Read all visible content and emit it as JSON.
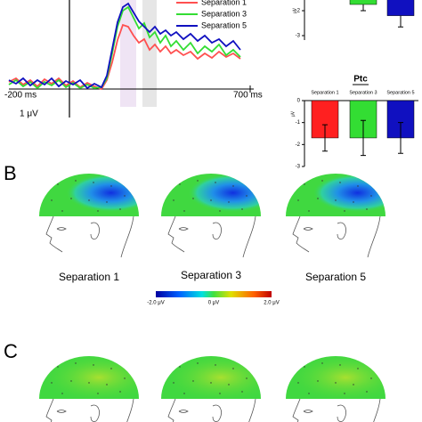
{
  "waveform": {
    "x_start_label": "-200 ms",
    "x_end_label": "700 ms",
    "scale_label": "1 μV",
    "legend": [
      {
        "name": "Separation 1",
        "color": "#ff5050"
      },
      {
        "name": "Separation 3",
        "color": "#33dd33"
      },
      {
        "name": "Separation 5",
        "color": "#1010c0"
      }
    ]
  },
  "bars_top": {
    "type": "bar",
    "ylabel": "μV",
    "ylim": [
      -3,
      0
    ],
    "yticks": [
      -3,
      -2
    ],
    "series": [
      {
        "color": "#33dd33",
        "value": -1.75,
        "error": 0.25
      },
      {
        "color": "#1010c0",
        "value": -2.2,
        "error": 0.45
      }
    ]
  },
  "bars_ptc": {
    "type": "bar",
    "title": "Ptc",
    "ylabel": "μV",
    "ylim": [
      -3,
      0
    ],
    "yticks": [
      0,
      -1,
      -2,
      -3
    ],
    "categories": [
      "Separation 1",
      "Separation 3",
      "Separation 5"
    ],
    "colors": [
      "#ff2020",
      "#33dd33",
      "#1010c0"
    ],
    "values": [
      -1.7,
      -1.7,
      -1.7
    ],
    "errors": [
      0.6,
      0.8,
      0.7
    ]
  },
  "panel_b": {
    "label": "B",
    "heads": [
      "Separation 1",
      "Separation 3",
      "Separation 5"
    ],
    "colorbar": {
      "min_label": "-2.0 μV",
      "mid_label": "0 μV",
      "max_label": "2.0 μV"
    }
  },
  "panel_c": {
    "label": "C"
  }
}
